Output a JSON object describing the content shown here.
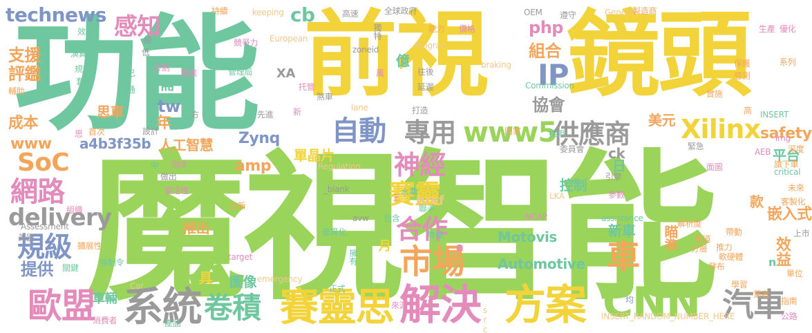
{
  "palette": {
    "green": "#9ad45a",
    "teal": "#6fc7a0",
    "yellow": "#f2d33a",
    "orange": "#f3a65b",
    "pink": "#e38bbb",
    "blue": "#7f95c6",
    "gray": "#9a9a9a",
    "red": "#e56e6e",
    "lightgreen": "#b3dd82",
    "peach": "#f2c88a"
  },
  "words": [
    "魔視智能",
    "功能",
    "前視",
    "鏡頭",
    "系統",
    "賽靈思",
    "解決",
    "方案",
    "CNN",
    "歐盟",
    "卷積",
    "市場",
    "合作",
    "車",
    "汽車",
    "Xilinx",
    "www5",
    "自動",
    "專用",
    "供應商",
    "IP",
    "神經",
    "賽靈",
    "規級",
    "網路",
    "SoC",
    "delivery",
    "technews",
    "感知",
    "評鑑",
    "支援",
    "cb",
    "php",
    "組合",
    "協會",
    "amp",
    "圖像",
    "Zynq",
    "單晶片",
    "safety",
    "平台",
    "嵌入式",
    "瞄準",
    "新車",
    "效益",
    "Motovis",
    "Automotive",
    "提供",
    "成本",
    "www",
    "a4b3f35b",
    "人工智慧",
    "需",
    "tw",
    "年",
    "推出",
    "控制",
    "日",
    "ck",
    "款",
    "月",
    "思車",
    "億",
    "美元",
    "具",
    "車輛",
    "href",
    "_blank",
    "Regulation",
    "水準",
    "聯手",
    "assistance",
    "emergency",
    "braking",
    "critical",
    "AEB",
    "深度",
    "旗下車",
    "未來",
    "客製化",
    "單位",
    "指南",
    "公路",
    "業者",
    "均",
    "學習",
    "發布",
    "軟硬體",
    "推力",
    "分層",
    "車道",
    "帶動",
    "解析度",
    "NCAP",
    "LKA",
    "Car",
    "target",
    "Assessment",
    "Program",
    "General",
    "OEM",
    "keeping",
    "lane",
    "European",
    "zoneid",
    "Commission",
    "INSERT",
    "INSERT_RANDOM_NUMBER_HERE",
    "img",
    "src",
    "演算法",
    "規範",
    "套",
    "交通",
    "現已",
    "管理局",
    "XA",
    "畫素",
    "分割",
    "低",
    "級",
    "競爭力",
    "效能",
    "輔助",
    "持續",
    "高速",
    "全球政府",
    "製造商",
    "遵守",
    "生產",
    "優化",
    "保護",
    "感測",
    "系列",
    "實施",
    "高",
    "能力",
    "價格",
    "獨特",
    "萬",
    "往後",
    "延遲",
    "煞車",
    "打造",
    "托管",
    "先進",
    "方",
    "新",
    "首次",
    "設計",
    "思",
    "採用",
    "國家",
    "緊急",
    "委員會",
    "引擎",
    "參數",
    "做出",
    "靈活性",
    "指令",
    "全新",
    "組織",
    "擴展性",
    "差異化",
    "美國",
    "強制令",
    "關鍵",
    "消費者",
    "產品",
    "正式",
    "來源",
    "擁有",
    "堆疊",
    "包含",
    "a",
    "三",
    "中",
    "n",
    "avw",
    "上市",
    "面圖"
  ]
}
